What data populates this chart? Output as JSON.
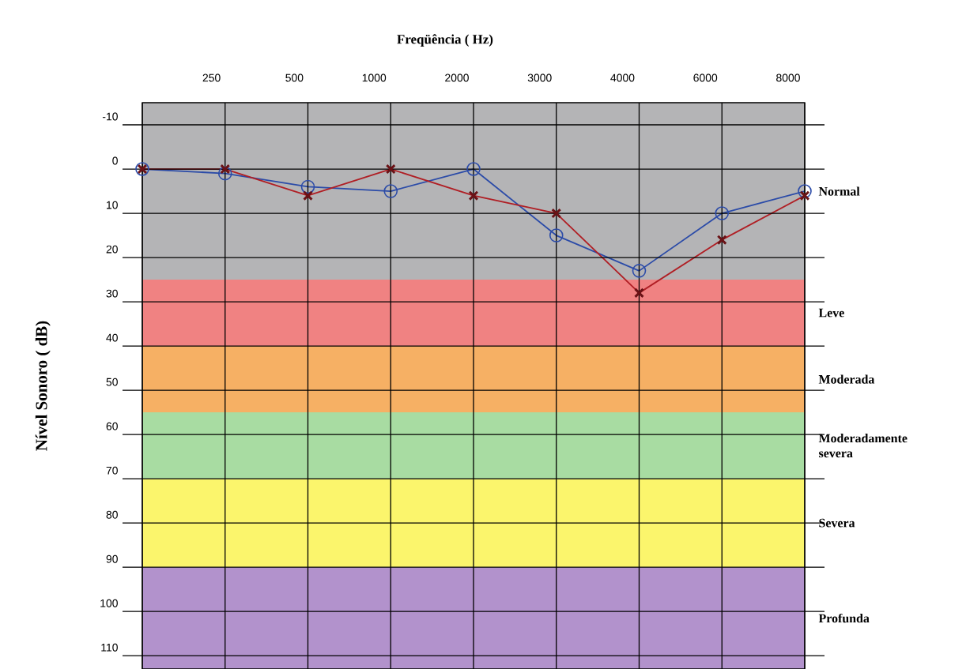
{
  "chart_data": {
    "type": "line",
    "xlabel": "Freqüência ( Hz)",
    "ylabel": "Nível Sonoro ( dB)",
    "categories": [
      null,
      "250",
      "500",
      "1000",
      "2000",
      "3000",
      "4000",
      "6000",
      "8000"
    ],
    "ylim": [
      113,
      -15
    ],
    "yticks": [
      -10,
      0,
      10,
      20,
      30,
      40,
      50,
      60,
      70,
      80,
      90,
      100,
      110
    ],
    "grid": true,
    "series": [
      {
        "color": "#2b4ba8",
        "marker": "circle",
        "values": [
          0,
          1,
          4,
          5,
          0,
          15,
          23,
          10,
          5
        ]
      },
      {
        "color": "#b01e24",
        "marker": "cross",
        "values": [
          0,
          0,
          6,
          0,
          6,
          10,
          28,
          16,
          6
        ]
      }
    ],
    "bands": [
      {
        "axis": "y",
        "from": -15,
        "to": 25,
        "label": "Normal",
        "color": "#b4b4b6"
      },
      {
        "axis": "y",
        "from": 25,
        "to": 40,
        "label": "Leve",
        "color": "#f08282"
      },
      {
        "axis": "y",
        "from": 40,
        "to": 55,
        "label": "Moderada",
        "color": "#f6b064"
      },
      {
        "axis": "y",
        "from": 55,
        "to": 70,
        "label": "Moderadamente severa",
        "color": "#a8dca2"
      },
      {
        "axis": "y",
        "from": 70,
        "to": 90,
        "label": "Severa",
        "color": "#fbf56c"
      },
      {
        "axis": "y",
        "from": 90,
        "to": 113,
        "label": "Profunda",
        "color": "#b292cc"
      }
    ]
  }
}
